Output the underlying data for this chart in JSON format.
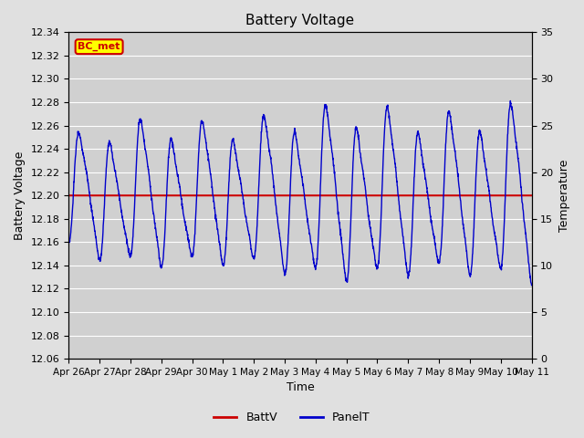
{
  "title": "Battery Voltage",
  "xlabel": "Time",
  "ylabel_left": "Battery Voltage",
  "ylabel_right": "Temperature",
  "ylim_left": [
    12.06,
    12.34
  ],
  "ylim_right": [
    0,
    35
  ],
  "yticks_left": [
    12.06,
    12.08,
    12.1,
    12.12,
    12.14,
    12.16,
    12.18,
    12.2,
    12.22,
    12.24,
    12.26,
    12.28,
    12.3,
    12.32,
    12.34
  ],
  "yticks_right": [
    0,
    5,
    10,
    15,
    20,
    25,
    30,
    35
  ],
  "xtick_labels": [
    "Apr 26",
    "Apr 27",
    "Apr 28",
    "Apr 29",
    "Apr 30",
    "May 1",
    "May 2",
    "May 3",
    "May 4",
    "May 5",
    "May 6",
    "May 7",
    "May 8",
    "May 9",
    "May 10",
    "May 11"
  ],
  "battv_value": 12.2,
  "background_color": "#e0e0e0",
  "plot_bg_color": "#d0d0d0",
  "grid_color": "#ffffff",
  "battv_color": "#cc0000",
  "panelt_color": "#0000cc",
  "legend_label_battv": "BattV",
  "legend_label_panelt": "PanelT",
  "station_label": "BC_met",
  "station_label_bg": "#ffff00",
  "station_label_border": "#cc0000",
  "station_label_text_color": "#cc0000",
  "title_fontsize": 11,
  "axis_label_fontsize": 9,
  "tick_fontsize": 8
}
